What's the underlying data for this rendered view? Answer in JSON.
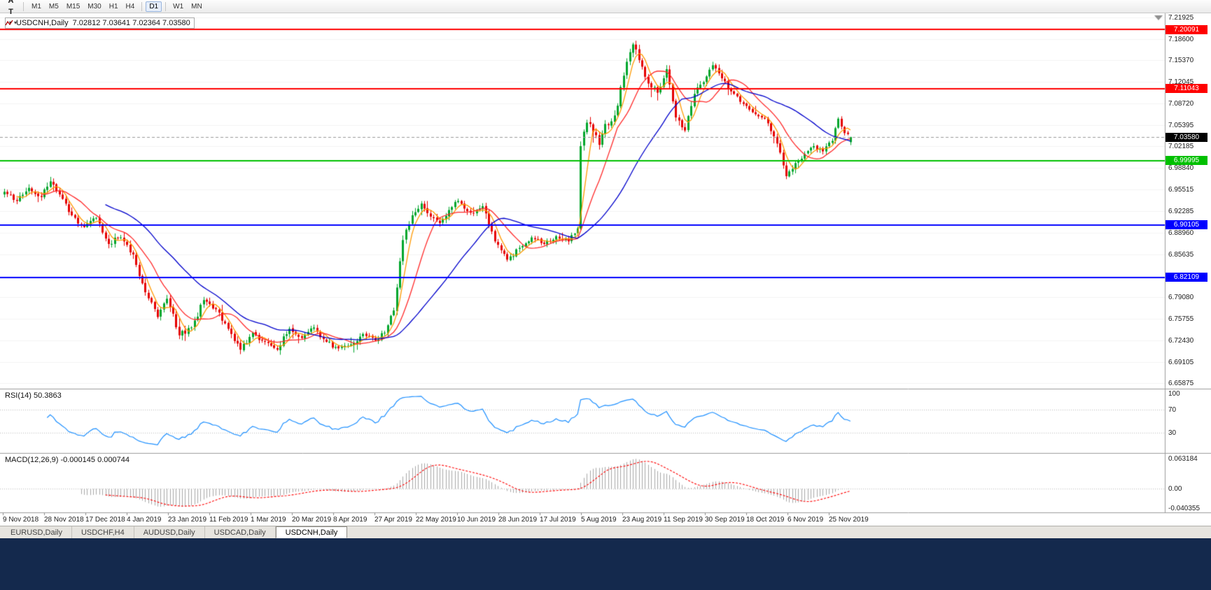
{
  "toolbar": {
    "tools": [
      {
        "name": "cursor",
        "glyph": "arrow",
        "caret": false
      },
      {
        "name": "crosshair",
        "glyph": "A",
        "caret": false
      },
      {
        "name": "text-label",
        "glyph": "T",
        "caret": false
      },
      {
        "name": "line-studies",
        "glyph": "zigzag",
        "caret": true
      }
    ],
    "timeframes": [
      {
        "label": "M1",
        "active": false
      },
      {
        "label": "M5",
        "active": false
      },
      {
        "label": "M15",
        "active": false
      },
      {
        "label": "M30",
        "active": false
      },
      {
        "label": "H1",
        "active": false
      },
      {
        "label": "H4",
        "active": false
      },
      {
        "label": "D1",
        "active": true
      },
      {
        "label": "W1",
        "active": false
      },
      {
        "label": "MN",
        "active": false
      }
    ]
  },
  "chart": {
    "title": "USDCNH,Daily",
    "ohlc": "7.02812 7.03641 7.02364 7.03580",
    "price_axis_ticks": [
      "7.21925",
      "7.18600",
      "7.15370",
      "7.12045",
      "7.08720",
      "7.05395",
      "7.02185",
      "6.98840",
      "6.95515",
      "6.92285",
      "6.88960",
      "6.85635",
      "6.79080",
      "6.75755",
      "6.72430",
      "6.69105",
      "6.65875"
    ],
    "levels": [
      {
        "label": "7.20091",
        "price": 7.20091,
        "color": "#ff0000"
      },
      {
        "label": "7.11043",
        "price": 7.11043,
        "color": "#ff0000"
      },
      {
        "label": "6.99995",
        "price": 6.99995,
        "color": "#00c000"
      },
      {
        "label": "6.90105",
        "price": 6.90105,
        "color": "#0000ff"
      },
      {
        "label": "6.82109",
        "price": 6.82109,
        "color": "#0000ff"
      }
    ],
    "current_price": {
      "label": "7.03580",
      "price": 7.0358,
      "color": "#000000"
    }
  },
  "rsi": {
    "label": "RSI(14) 50.3863",
    "period": 14,
    "current": 50.3863,
    "ticks": [
      {
        "label": "100",
        "value": 100
      },
      {
        "label": "70",
        "value": 70
      },
      {
        "label": "30",
        "value": 30
      }
    ],
    "levels": [
      70,
      30
    ],
    "line_color": "#1e90ff"
  },
  "macd": {
    "label": "MACD(12,26,9) -0.000145 0.000744",
    "params": [
      12,
      26,
      9
    ],
    "current_macd": -0.000145,
    "current_signal": 0.000744,
    "ticks": [
      {
        "label": "0.063184",
        "value": 0.063184
      },
      {
        "label": "0.00",
        "value": 0
      },
      {
        "label": "-0.040355",
        "value": -0.040355
      }
    ],
    "hist_color": "#a8a8a8",
    "signal_color": "#ff0000"
  },
  "dates": [
    "9 Nov 2018",
    "28 Nov 2018",
    "17 Dec 2018",
    "4 Jan 2019",
    "23 Jan 2019",
    "11 Feb 2019",
    "1 Mar 2019",
    "20 Mar 2019",
    "8 Apr 2019",
    "27 Apr 2019",
    "22 May 2019",
    "10 Jun 2019",
    "28 Jun 2019",
    "17 Jul 2019",
    "5 Aug 2019",
    "23 Aug 2019",
    "11 Sep 2019",
    "30 Sep 2019",
    "18 Oct 2019",
    "6 Nov 2019",
    "25 Nov 2019"
  ],
  "tabs": [
    {
      "label": "EURUSD,Daily",
      "active": false
    },
    {
      "label": "USDCHF,H4",
      "active": false
    },
    {
      "label": "AUDUSD,Daily",
      "active": false
    },
    {
      "label": "USDCAD,Daily",
      "active": false
    },
    {
      "label": "USDCNH,Daily",
      "active": true
    }
  ],
  "chart_data": {
    "type": "candlestick-ohlc",
    "symbol": "USDCNH",
    "timeframe": "Daily",
    "visible_price_range": {
      "min": 6.65875,
      "max": 7.21925
    },
    "date_range": {
      "first_label": "9 Nov 2018",
      "last_label": "25 Nov 2019"
    },
    "count": 277,
    "seed": 20191210,
    "style": {
      "up_color": "#00a62c",
      "down_color": "#e60000"
    },
    "ma": [
      {
        "period": 5,
        "color": "#ff9900"
      },
      {
        "period": 13,
        "color": "#ff2a2a"
      },
      {
        "period": 34,
        "color": "#0000cc"
      }
    ],
    "ohlc_current": {
      "open": 7.02812,
      "high": 7.03641,
      "low": 7.02364,
      "close": 7.0358
    },
    "anchors": [
      [
        0,
        6.952,
        0.012
      ],
      [
        4,
        6.938,
        0.012
      ],
      [
        8,
        6.958,
        0.012
      ],
      [
        12,
        6.944,
        0.012
      ],
      [
        15,
        6.968,
        0.012
      ],
      [
        18,
        6.948,
        0.012
      ],
      [
        22,
        6.916,
        0.013
      ],
      [
        26,
        6.898,
        0.013
      ],
      [
        30,
        6.912,
        0.013
      ],
      [
        34,
        6.872,
        0.014
      ],
      [
        38,
        6.882,
        0.014
      ],
      [
        42,
        6.856,
        0.015
      ],
      [
        46,
        6.798,
        0.016
      ],
      [
        50,
        6.76,
        0.016
      ],
      [
        53,
        6.788,
        0.014
      ],
      [
        57,
        6.732,
        0.016
      ],
      [
        61,
        6.744,
        0.014
      ],
      [
        65,
        6.786,
        0.013
      ],
      [
        69,
        6.772,
        0.013
      ],
      [
        73,
        6.742,
        0.014
      ],
      [
        77,
        6.71,
        0.016
      ],
      [
        81,
        6.736,
        0.013
      ],
      [
        85,
        6.722,
        0.012
      ],
      [
        89,
        6.71,
        0.015
      ],
      [
        93,
        6.742,
        0.012
      ],
      [
        97,
        6.728,
        0.011
      ],
      [
        101,
        6.744,
        0.011
      ],
      [
        105,
        6.722,
        0.011
      ],
      [
        109,
        6.712,
        0.012
      ],
      [
        113,
        6.718,
        0.011
      ],
      [
        117,
        6.734,
        0.011
      ],
      [
        121,
        6.724,
        0.011
      ],
      [
        124,
        6.736,
        0.011
      ],
      [
        127,
        6.77,
        0.013
      ],
      [
        130,
        6.878,
        0.016
      ],
      [
        133,
        6.916,
        0.014
      ],
      [
        136,
        6.934,
        0.013
      ],
      [
        139,
        6.914,
        0.012
      ],
      [
        142,
        6.904,
        0.012
      ],
      [
        145,
        6.924,
        0.012
      ],
      [
        148,
        6.938,
        0.012
      ],
      [
        152,
        6.92,
        0.012
      ],
      [
        156,
        6.93,
        0.011
      ],
      [
        160,
        6.876,
        0.013
      ],
      [
        164,
        6.848,
        0.013
      ],
      [
        168,
        6.866,
        0.011
      ],
      [
        172,
        6.882,
        0.01
      ],
      [
        176,
        6.872,
        0.01
      ],
      [
        180,
        6.884,
        0.01
      ],
      [
        184,
        6.876,
        0.01
      ],
      [
        187,
        6.896,
        0.012
      ],
      [
        188,
        7.022,
        0.016
      ],
      [
        190,
        7.058,
        0.018
      ],
      [
        192,
        7.044,
        0.016
      ],
      [
        194,
        7.024,
        0.016
      ],
      [
        196,
        7.056,
        0.016
      ],
      [
        198,
        7.06,
        0.016
      ],
      [
        200,
        7.084,
        0.016
      ],
      [
        202,
        7.13,
        0.018
      ],
      [
        205,
        7.178,
        0.018
      ],
      [
        207,
        7.154,
        0.016
      ],
      [
        210,
        7.118,
        0.015
      ],
      [
        213,
        7.104,
        0.015
      ],
      [
        216,
        7.14,
        0.014
      ],
      [
        219,
        7.066,
        0.016
      ],
      [
        222,
        7.046,
        0.014
      ],
      [
        225,
        7.102,
        0.014
      ],
      [
        228,
        7.12,
        0.013
      ],
      [
        231,
        7.146,
        0.013
      ],
      [
        234,
        7.126,
        0.012
      ],
      [
        237,
        7.106,
        0.011
      ],
      [
        240,
        7.09,
        0.01
      ],
      [
        244,
        7.074,
        0.01
      ],
      [
        248,
        7.064,
        0.01
      ],
      [
        252,
        7.026,
        0.012
      ],
      [
        255,
        6.976,
        0.014
      ],
      [
        258,
        6.996,
        0.012
      ],
      [
        261,
        7.01,
        0.01
      ],
      [
        264,
        7.022,
        0.01
      ],
      [
        267,
        7.014,
        0.01
      ],
      [
        270,
        7.03,
        0.01
      ],
      [
        272,
        7.064,
        0.012
      ],
      [
        274,
        7.042,
        0.01
      ],
      [
        276,
        7.0358,
        0.008
      ]
    ]
  }
}
